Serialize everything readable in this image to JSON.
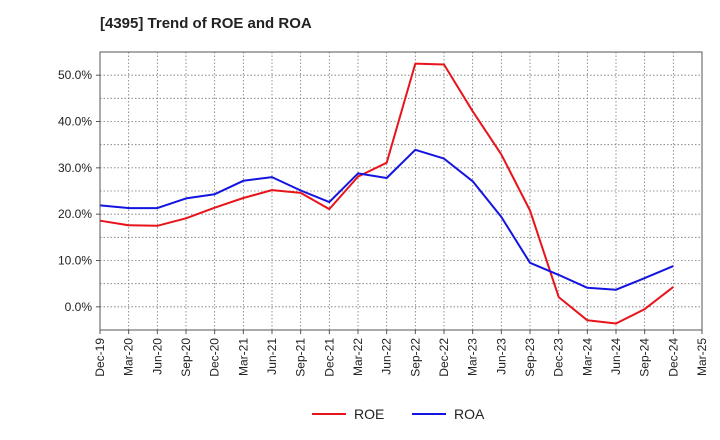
{
  "chart_data": {
    "type": "line",
    "title": "[4395]  Trend of ROE and ROA",
    "xlabel": "",
    "ylabel": "",
    "x": [
      "Dec-19",
      "Mar-20",
      "Jun-20",
      "Sep-20",
      "Dec-20",
      "Mar-21",
      "Jun-21",
      "Sep-21",
      "Dec-21",
      "Mar-22",
      "Jun-22",
      "Sep-22",
      "Dec-22",
      "Mar-23",
      "Jun-23",
      "Sep-23",
      "Dec-23",
      "Mar-24",
      "Jun-24",
      "Sep-24",
      "Dec-24",
      "Mar-25"
    ],
    "y_ticks": [
      "0.0%",
      "10.0%",
      "20.0%",
      "30.0%",
      "40.0%",
      "50.0%"
    ],
    "ylim": [
      -5,
      55
    ],
    "grid": true,
    "legend_position": "bottom-center",
    "series": [
      {
        "name": "ROE",
        "color": "#e8141c",
        "values": [
          18.6,
          17.6,
          17.5,
          19.1,
          21.4,
          23.5,
          25.2,
          24.6,
          21.1,
          28.1,
          31.1,
          52.5,
          52.3,
          42.2,
          32.9,
          20.8,
          2.1,
          -2.9,
          -3.6,
          -0.5,
          4.3,
          null
        ]
      },
      {
        "name": "ROA",
        "color": "#1414e0",
        "values": [
          21.9,
          21.3,
          21.3,
          23.4,
          24.3,
          27.2,
          28.0,
          25.1,
          22.6,
          28.8,
          27.8,
          33.9,
          32.0,
          27.1,
          19.4,
          9.5,
          6.9,
          4.1,
          3.7,
          6.2,
          8.8,
          null
        ]
      }
    ]
  }
}
